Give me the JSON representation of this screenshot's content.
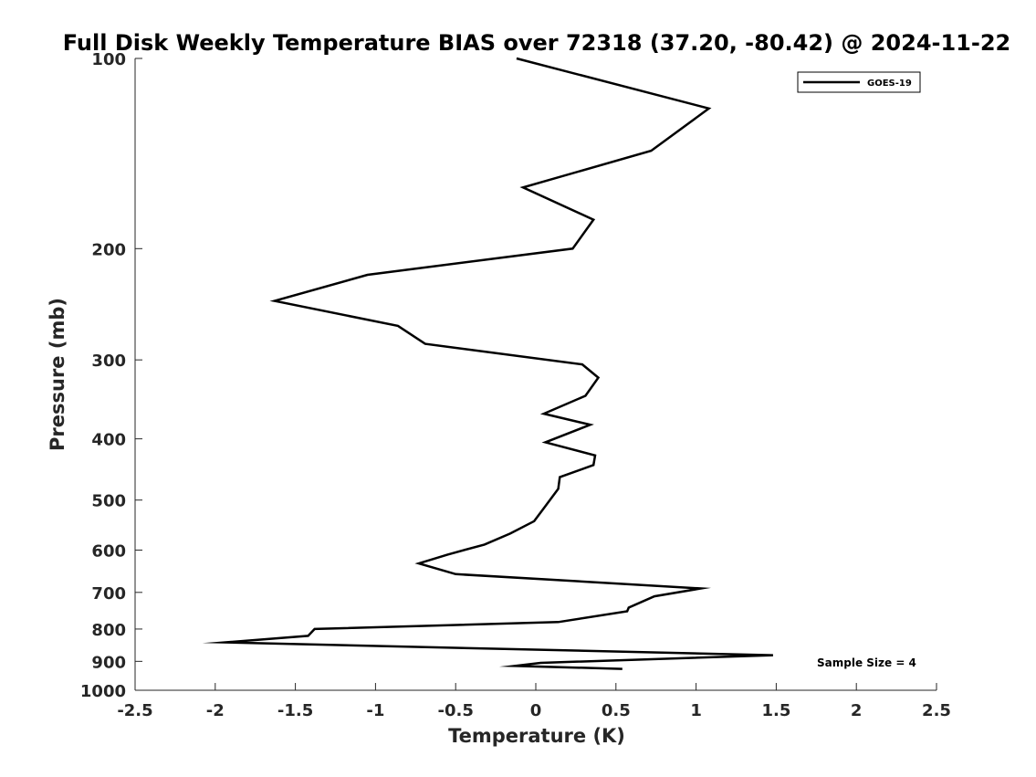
{
  "chart_data": {
    "type": "line",
    "title": "Full Disk Weekly Temperature BIAS over 72318 (37.20, -80.42) @ 2024-11-22",
    "xlabel": "Temperature (K)",
    "ylabel": "Pressure (mb)",
    "xlim": [
      -2.5,
      2.5
    ],
    "ylim": [
      100,
      1000
    ],
    "y_scale": "log",
    "y_reversed": true,
    "x_ticks": [
      -2.5,
      -2,
      -1.5,
      -1,
      -0.5,
      0,
      0.5,
      1,
      1.5,
      2,
      2.5
    ],
    "x_tick_labels": [
      "-2.5",
      "-2",
      "-1.5",
      "-1",
      "-0.5",
      "0",
      "0.5",
      "1",
      "1.5",
      "2",
      "2.5"
    ],
    "y_ticks": [
      100,
      200,
      300,
      400,
      500,
      600,
      700,
      800,
      900,
      1000
    ],
    "y_tick_labels": [
      "100",
      "200",
      "300",
      "400",
      "500",
      "600",
      "700",
      "800",
      "900",
      "1000"
    ],
    "grid": false,
    "legend_position": "top-right",
    "annotation": "Sample Size = 4",
    "series": [
      {
        "name": "GOES-19",
        "color": "#000000",
        "x": [
          -0.12,
          1.08,
          0.72,
          -0.08,
          0.36,
          0.23,
          -1.05,
          -1.63,
          -0.86,
          -0.69,
          0.29,
          0.39,
          0.31,
          0.05,
          0.34,
          0.06,
          0.37,
          0.36,
          0.15,
          0.14,
          0.05,
          -0.01,
          -0.16,
          -0.32,
          -0.55,
          -0.73,
          -0.5,
          1.03,
          0.74,
          0.58,
          0.57,
          0.14,
          -1.38,
          -1.42,
          -1.94,
          1.48,
          0.03,
          -0.13,
          0.54
        ],
        "y": [
          100,
          120,
          140,
          160,
          180,
          200,
          220,
          242,
          265,
          283,
          305,
          320,
          342,
          365,
          380,
          405,
          425,
          440,
          460,
          480,
          515,
          540,
          565,
          588,
          610,
          630,
          655,
          690,
          710,
          740,
          750,
          780,
          800,
          820,
          840,
          880,
          905,
          915,
          925
        ]
      }
    ]
  }
}
